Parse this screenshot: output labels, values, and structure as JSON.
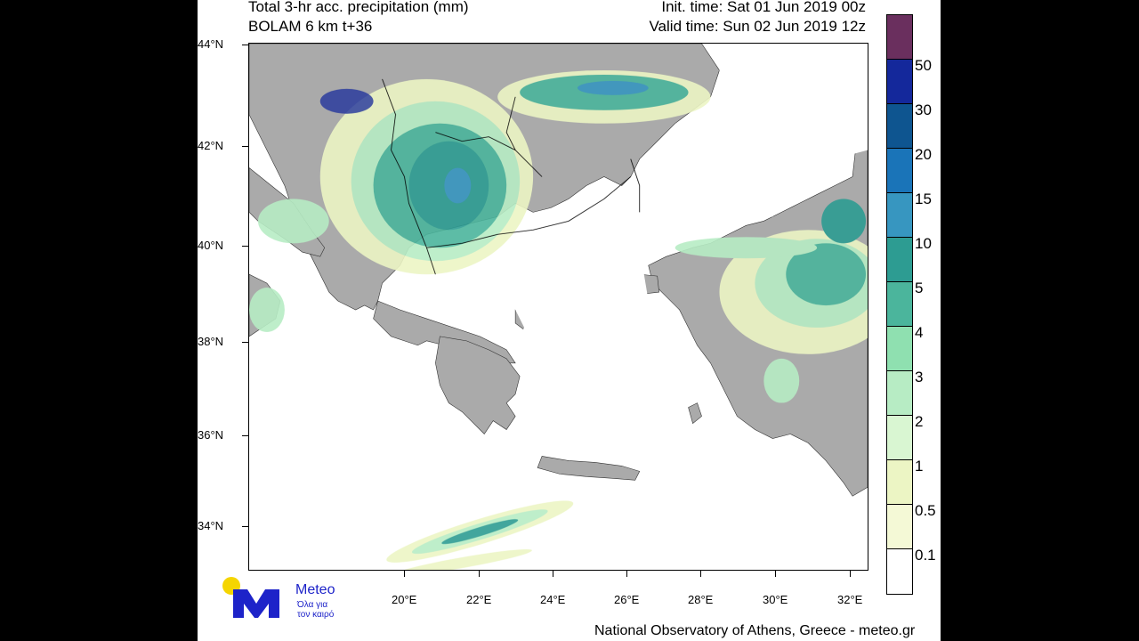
{
  "header": {
    "title_line1": "Total 3-hr acc. precipitation (mm)",
    "title_line2": "BOLAM 6 km t+36",
    "init_time": "Init. time: Sat 01 Jun 2019 00z",
    "valid_time": "Valid time: Sun 02 Jun 2019 12z"
  },
  "axes": {
    "lat_labels": [
      "44°N",
      "42°N",
      "40°N",
      "38°N",
      "36°N",
      "34°N"
    ],
    "lon_labels": [
      "20°E",
      "22°E",
      "24°E",
      "26°E",
      "28°E",
      "30°E",
      "32°E"
    ]
  },
  "legend": {
    "levels": [
      "50",
      "30",
      "20",
      "15",
      "10",
      "5",
      "4",
      "3",
      "2",
      "1",
      "0.5",
      "0.1"
    ],
    "colors": [
      "#6a2f5e",
      "#14289b",
      "#0e5590",
      "#1a74b8",
      "#3796c0",
      "#2d9c92",
      "#4bb59c",
      "#8fe0b0",
      "#b7ecc4",
      "#d9f6d2",
      "#ecf5c4",
      "#f4f9d6",
      "#ffffff"
    ]
  },
  "logo": {
    "brand": "Meteo",
    "tagline_line1": "Όλα για",
    "tagline_line2": "τον καιρό"
  },
  "footer": {
    "credit": "National Observatory of Athens, Greece - meteo.gr"
  },
  "colors": {
    "land": "#aaaaaa",
    "sea": "#ffffff",
    "logo_blue": "#1d23c9",
    "logo_yellow": "#f5d500"
  }
}
